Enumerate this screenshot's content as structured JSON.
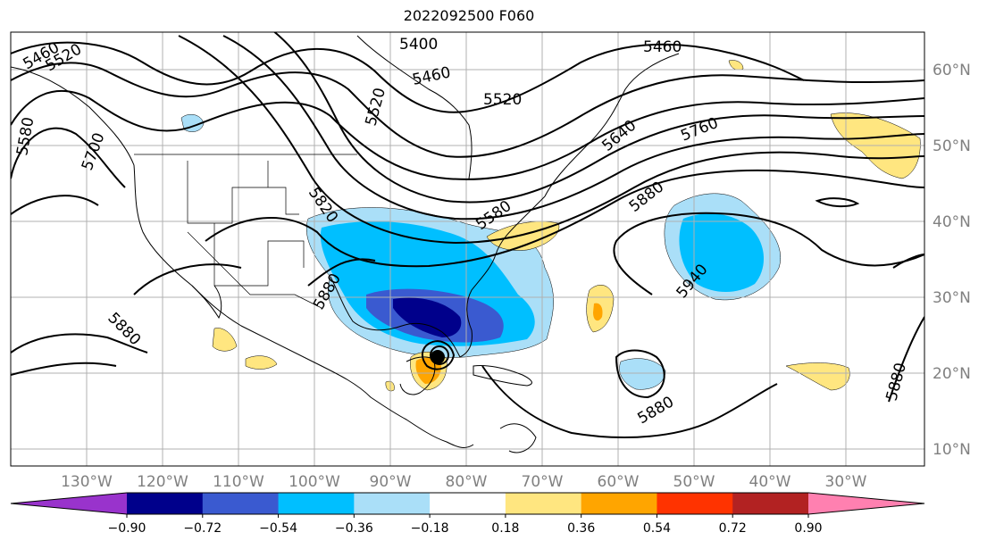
{
  "title": "2022092500 F060",
  "lat_labels": [
    "60°N",
    "50°N",
    "40°N",
    "30°N",
    "20°N",
    "10°N"
  ],
  "lon_labels": [
    "130°W",
    "120°W",
    "110°W",
    "100°W",
    "90°W",
    "80°W",
    "70°W",
    "60°W",
    "50°W",
    "40°W",
    "30°W"
  ],
  "contour_labels": [
    "5460",
    "5520",
    "5400",
    "5460",
    "5460",
    "5520",
    "5520",
    "5580",
    "5700",
    "5640",
    "5760",
    "5820",
    "5880",
    "5580",
    "5880",
    "5940",
    "5880",
    "5880",
    "5880"
  ],
  "colorbar": {
    "ticks": [
      "−0.90",
      "−0.72",
      "−0.54",
      "−0.36",
      "−0.18",
      "0.18",
      "0.36",
      "0.54",
      "0.72",
      "0.90"
    ],
    "colors": [
      "#9933cc",
      "#00008b",
      "#3a5ad0",
      "#00bfff",
      "#aadff8",
      "#ffffff",
      "#ffe680",
      "#ffa500",
      "#ff3300",
      "#b22222",
      "#ff80b0"
    ]
  }
}
